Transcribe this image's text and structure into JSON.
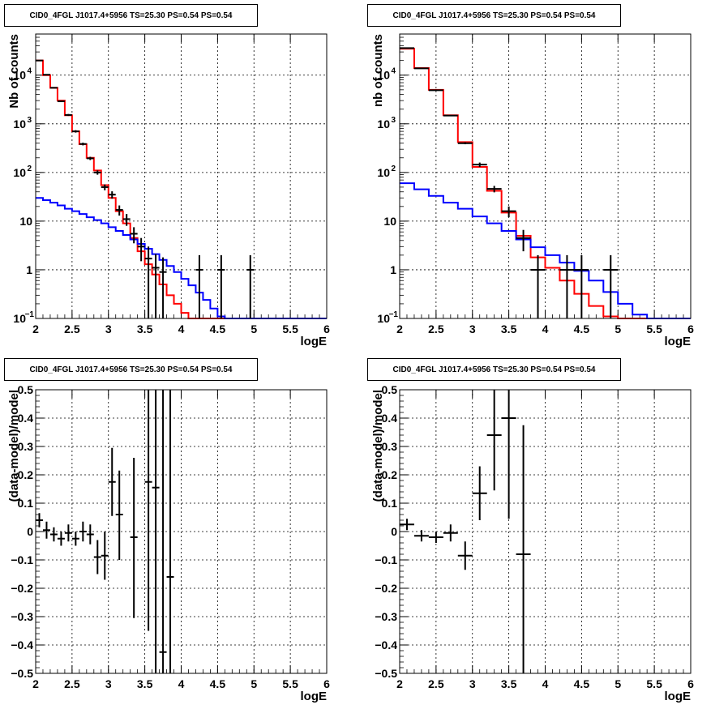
{
  "chart_data": [
    {
      "type": "line",
      "title": "CID0_4FGL J1017.4+5956 TS=25.30 PS=0.54 PS=0.54",
      "xlabel": "logE",
      "ylabel": "Nb of counts",
      "xlim": [
        2,
        6
      ],
      "ylim": [
        0.1,
        70000
      ],
      "yscale": "log",
      "grid": true,
      "xticks": [
        "2",
        "2.5",
        "3",
        "3.5",
        "4",
        "4.5",
        "5",
        "5.5",
        "6"
      ],
      "yticks": [
        {
          "v": 0.1,
          "label": "10",
          "sup": "−1"
        },
        {
          "v": 1,
          "label": "1",
          "sup": ""
        },
        {
          "v": 10,
          "label": "10",
          "sup": ""
        },
        {
          "v": 100,
          "label": "10",
          "sup": "2"
        },
        {
          "v": 1000,
          "label": "10",
          "sup": "3"
        },
        {
          "v": 10000,
          "label": "10",
          "sup": "4"
        }
      ],
      "bin_width": 0.1,
      "series": [
        {
          "role": "total-model",
          "color": "#ff0000",
          "bin_edges_start": 2.0,
          "values": [
            20000,
            10000,
            5500,
            3000,
            1500,
            700,
            380,
            200,
            110,
            55,
            30,
            16,
            9,
            4.5,
            2.4,
            1.3,
            0.8,
            0.5,
            0.3,
            0.2,
            0.13,
            0.1,
            0.1,
            0.1,
            0.1,
            0.1,
            0.1,
            0.1,
            0.1,
            0.1,
            0.1,
            0.1,
            0.1,
            0.1,
            0.1,
            0.1,
            0.1,
            0.1,
            0.1,
            0.1
          ]
        },
        {
          "role": "background-model",
          "color": "#0000ff",
          "bin_edges_start": 2.0,
          "values": [
            30,
            27,
            24,
            21,
            18,
            16,
            14,
            12,
            10.5,
            9,
            7.5,
            6.3,
            5.2,
            4.2,
            3.4,
            2.7,
            2.1,
            1.6,
            1.2,
            0.9,
            0.65,
            0.48,
            0.34,
            0.24,
            0.16,
            0.11,
            0.1,
            0.1,
            0.1,
            0.1,
            0.1,
            0.1,
            0.1,
            0.1,
            0.1,
            0.1,
            0.1,
            0.1,
            0.1,
            0.1
          ]
        },
        {
          "role": "data",
          "color": "#000000",
          "points": [
            {
              "x": 2.05,
              "y": 20000,
              "lo": 19800,
              "hi": 20200
            },
            {
              "x": 2.15,
              "y": 10200,
              "lo": 10000,
              "hi": 10400
            },
            {
              "x": 2.25,
              "y": 5500,
              "lo": 5350,
              "hi": 5650
            },
            {
              "x": 2.35,
              "y": 2900,
              "lo": 2800,
              "hi": 3000
            },
            {
              "x": 2.45,
              "y": 1520,
              "lo": 1450,
              "hi": 1590
            },
            {
              "x": 2.55,
              "y": 700,
              "lo": 660,
              "hi": 740
            },
            {
              "x": 2.65,
              "y": 385,
              "lo": 360,
              "hi": 410
            },
            {
              "x": 2.75,
              "y": 195,
              "lo": 180,
              "hi": 210
            },
            {
              "x": 2.85,
              "y": 100,
              "lo": 90,
              "hi": 110
            },
            {
              "x": 2.95,
              "y": 50,
              "lo": 43,
              "hi": 57
            },
            {
              "x": 3.05,
              "y": 35,
              "lo": 29,
              "hi": 41
            },
            {
              "x": 3.15,
              "y": 17,
              "lo": 13,
              "hi": 21
            },
            {
              "x": 3.25,
              "y": 11,
              "lo": 8,
              "hi": 14
            },
            {
              "x": 3.35,
              "y": 5.5,
              "lo": 3.5,
              "hi": 7.5
            },
            {
              "x": 3.45,
              "y": 3,
              "lo": 1.5,
              "hi": 4.5
            },
            {
              "x": 3.55,
              "y": 1.7,
              "lo": 0.1,
              "hi": 3
            },
            {
              "x": 3.65,
              "y": 1.1,
              "lo": 0.1,
              "hi": 2.1
            },
            {
              "x": 3.75,
              "y": 0.9,
              "lo": 0.1,
              "hi": 1.8
            },
            {
              "x": 4.25,
              "y": 1,
              "lo": 0.1,
              "hi": 2
            },
            {
              "x": 4.55,
              "y": 1,
              "lo": 0.1,
              "hi": 2
            },
            {
              "x": 4.95,
              "y": 1,
              "lo": 0.1,
              "hi": 2
            }
          ]
        }
      ]
    },
    {
      "type": "line",
      "title": "CID0_4FGL J1017.4+5956 TS=25.30 PS=0.54 PS=0.54",
      "xlabel": "logE",
      "ylabel": "nb of counts",
      "xlim": [
        2,
        6
      ],
      "ylim": [
        0.1,
        70000
      ],
      "yscale": "log",
      "grid": true,
      "xticks": [
        "2",
        "2.5",
        "3",
        "3.5",
        "4",
        "4.5",
        "5",
        "5.5",
        "6"
      ],
      "yticks": [
        {
          "v": 0.1,
          "label": "10",
          "sup": "−1"
        },
        {
          "v": 1,
          "label": "1",
          "sup": ""
        },
        {
          "v": 10,
          "label": "10",
          "sup": ""
        },
        {
          "v": 100,
          "label": "10",
          "sup": "2"
        },
        {
          "v": 1000,
          "label": "10",
          "sup": "3"
        },
        {
          "v": 10000,
          "label": "10",
          "sup": "4"
        }
      ],
      "bin_width": 0.2,
      "series": [
        {
          "role": "total-model",
          "color": "#ff0000",
          "bin_edges_start": 2.0,
          "values": [
            35000,
            14000,
            5000,
            1500,
            420,
            130,
            42,
            15,
            5,
            1.8,
            1.1,
            0.6,
            0.32,
            0.18,
            0.11,
            0.1,
            0.1,
            0.1,
            0.1,
            0.1
          ]
        },
        {
          "role": "background-model",
          "color": "#0000ff",
          "bin_edges_start": 2.0,
          "values": [
            60,
            45,
            33,
            24,
            18,
            12.5,
            9,
            6.3,
            4.2,
            2.9,
            2,
            1.4,
            0.95,
            0.6,
            0.35,
            0.2,
            0.12,
            0.1,
            0.1,
            0.1
          ]
        },
        {
          "role": "data",
          "color": "#000000",
          "points": [
            {
              "x": 2.1,
              "y": 36000,
              "lo": 35700,
              "hi": 36300
            },
            {
              "x": 2.3,
              "y": 13800,
              "lo": 13600,
              "hi": 14000
            },
            {
              "x": 2.5,
              "y": 4900,
              "lo": 4800,
              "hi": 5000
            },
            {
              "x": 2.7,
              "y": 1480,
              "lo": 1440,
              "hi": 1520
            },
            {
              "x": 2.9,
              "y": 400,
              "lo": 380,
              "hi": 420
            },
            {
              "x": 3.1,
              "y": 145,
              "lo": 130,
              "hi": 160
            },
            {
              "x": 3.3,
              "y": 46,
              "lo": 39,
              "hi": 53
            },
            {
              "x": 3.5,
              "y": 16,
              "lo": 12,
              "hi": 20
            },
            {
              "x": 3.7,
              "y": 4.5,
              "lo": 2.4,
              "hi": 6.6
            },
            {
              "x": 3.9,
              "y": 1,
              "lo": 0.1,
              "hi": 2
            },
            {
              "x": 4.3,
              "y": 1,
              "lo": 0.1,
              "hi": 2
            },
            {
              "x": 4.5,
              "y": 1,
              "lo": 0.1,
              "hi": 2
            },
            {
              "x": 4.9,
              "y": 1,
              "lo": 0.1,
              "hi": 2
            }
          ]
        }
      ]
    },
    {
      "type": "scatter",
      "title": "CID0_4FGL J1017.4+5956 TS=25.30 PS=0.54 PS=0.54",
      "xlabel": "logE",
      "ylabel": "(data-model)/model",
      "xlim": [
        2,
        6
      ],
      "ylim": [
        -0.5,
        0.5
      ],
      "grid": true,
      "xticks": [
        "2",
        "2.5",
        "3",
        "3.5",
        "4",
        "4.5",
        "5",
        "5.5",
        "6"
      ],
      "yticks": [
        "−0.5",
        "−0.4",
        "−0.3",
        "−0.2",
        "−0.1",
        "0",
        "0.1",
        "0.2",
        "0.3",
        "0.4",
        "0.5"
      ],
      "bin_width": 0.1,
      "series": [
        {
          "role": "data",
          "color": "#000000",
          "points": [
            {
              "x": 2.05,
              "y": 0.04,
              "lo": 0.015,
              "hi": 0.065
            },
            {
              "x": 2.15,
              "y": 0.005,
              "lo": -0.025,
              "hi": 0.035
            },
            {
              "x": 2.25,
              "y": -0.01,
              "lo": -0.035,
              "hi": 0.015
            },
            {
              "x": 2.35,
              "y": -0.025,
              "lo": -0.05,
              "hi": 0.0
            },
            {
              "x": 2.45,
              "y": -0.005,
              "lo": -0.035,
              "hi": 0.025
            },
            {
              "x": 2.55,
              "y": -0.025,
              "lo": -0.05,
              "hi": 0.0
            },
            {
              "x": 2.65,
              "y": 0.0,
              "lo": -0.035,
              "hi": 0.035
            },
            {
              "x": 2.75,
              "y": -0.01,
              "lo": -0.045,
              "hi": 0.025
            },
            {
              "x": 2.85,
              "y": -0.09,
              "lo": -0.15,
              "hi": -0.03
            },
            {
              "x": 2.95,
              "y": -0.085,
              "lo": -0.17,
              "hi": 0.0
            },
            {
              "x": 3.05,
              "y": 0.175,
              "lo": 0.055,
              "hi": 0.295
            },
            {
              "x": 3.15,
              "y": 0.06,
              "lo": -0.1,
              "hi": 0.215
            },
            {
              "x": 3.35,
              "y": -0.02,
              "lo": -0.305,
              "hi": 0.26
            },
            {
              "x": 3.55,
              "y": 0.175,
              "lo": -0.35,
              "hi": 0.5
            },
            {
              "x": 3.65,
              "y": 0.155,
              "lo": -0.5,
              "hi": 0.5
            },
            {
              "x": 3.75,
              "y": -0.425,
              "lo": -0.5,
              "hi": 0.5
            },
            {
              "x": 3.85,
              "y": -0.16,
              "lo": -0.5,
              "hi": 0.5
            }
          ]
        }
      ]
    },
    {
      "type": "scatter",
      "title": "CID0_4FGL J1017.4+5956 TS=25.30 PS=0.54 PS=0.54",
      "xlabel": "logE",
      "ylabel": "(data-model)/model",
      "xlim": [
        2,
        6
      ],
      "ylim": [
        -0.5,
        0.5
      ],
      "grid": true,
      "xticks": [
        "2",
        "2.5",
        "3",
        "3.5",
        "4",
        "4.5",
        "5",
        "5.5",
        "6"
      ],
      "yticks": [
        "−0.5",
        "−0.4",
        "−0.3",
        "−0.2",
        "−0.1",
        "0",
        "0.1",
        "0.2",
        "0.3",
        "0.4",
        "0.5"
      ],
      "bin_width": 0.2,
      "series": [
        {
          "role": "data",
          "color": "#000000",
          "points": [
            {
              "x": 2.1,
              "y": 0.025,
              "lo": 0.005,
              "hi": 0.045
            },
            {
              "x": 2.3,
              "y": -0.015,
              "lo": -0.035,
              "hi": 0.005
            },
            {
              "x": 2.5,
              "y": -0.02,
              "lo": -0.04,
              "hi": 0.0
            },
            {
              "x": 2.7,
              "y": -0.005,
              "lo": -0.035,
              "hi": 0.025
            },
            {
              "x": 2.9,
              "y": -0.085,
              "lo": -0.135,
              "hi": -0.035
            },
            {
              "x": 3.1,
              "y": 0.135,
              "lo": 0.04,
              "hi": 0.23
            },
            {
              "x": 3.3,
              "y": 0.34,
              "lo": 0.145,
              "hi": 0.5
            },
            {
              "x": 3.5,
              "y": 0.4,
              "lo": 0.045,
              "hi": 0.5
            },
            {
              "x": 3.7,
              "y": -0.08,
              "lo": -0.5,
              "hi": 0.375
            }
          ]
        }
      ]
    }
  ]
}
